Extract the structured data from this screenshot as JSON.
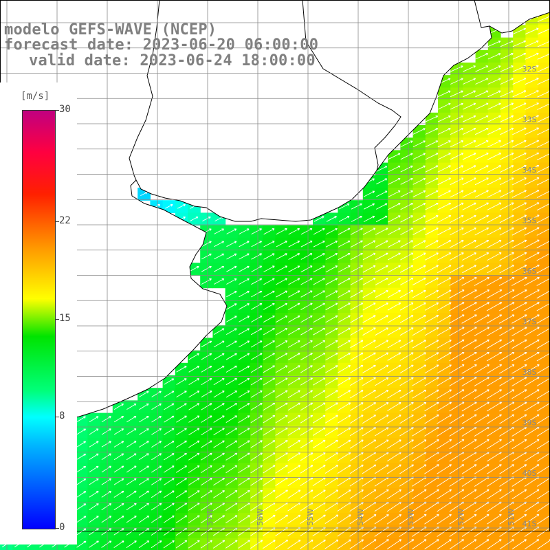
{
  "header": {
    "model_line": "modelo GEFS-WAVE (NCEP)",
    "forecast_line": "forecast date: 2023-06-20 06:00:00",
    "valid_line": "valid date: 2023-06-24 18:00:00"
  },
  "colorbar": {
    "unit": "[m/s]",
    "min": 0,
    "max": 30,
    "ticks": [
      {
        "value": 30,
        "label": "30"
      },
      {
        "value": 22,
        "label": "22"
      },
      {
        "value": 15,
        "label": "15"
      },
      {
        "value": 8,
        "label": "8"
      },
      {
        "value": 0,
        "label": "0"
      }
    ],
    "colors": [
      "#0000ff",
      "#00b6ff",
      "#00ffff",
      "#00ff7a",
      "#00e400",
      "#ffff00",
      "#ff9a00",
      "#ff2000",
      "#c00080"
    ]
  },
  "map": {
    "lat_labels": [
      {
        "lat": -32,
        "label": "32S"
      },
      {
        "lat": -33,
        "label": "33S"
      },
      {
        "lat": -34,
        "label": "34S"
      },
      {
        "lat": -35,
        "label": "35S"
      },
      {
        "lat": -36,
        "label": "36S"
      },
      {
        "lat": -37,
        "label": "37S"
      },
      {
        "lat": -38,
        "label": "38S"
      },
      {
        "lat": -39,
        "label": "39S"
      },
      {
        "lat": -40,
        "label": "40S"
      },
      {
        "lat": -41,
        "label": "41S"
      }
    ],
    "lon_labels": [
      {
        "lon": -57,
        "label": "57W"
      },
      {
        "lon": -56,
        "label": "56W"
      },
      {
        "lon": -55,
        "label": "55W"
      },
      {
        "lon": -54,
        "label": "54W"
      },
      {
        "lon": -53,
        "label": "53W"
      },
      {
        "lon": -52,
        "label": "52W"
      },
      {
        "lon": -51,
        "label": "51W"
      }
    ],
    "colors": {
      "land": "#ffffff",
      "coastline": "#000000",
      "grid": "#888888",
      "arrows": "#ffffff",
      "map_label": "#888888"
    }
  }
}
